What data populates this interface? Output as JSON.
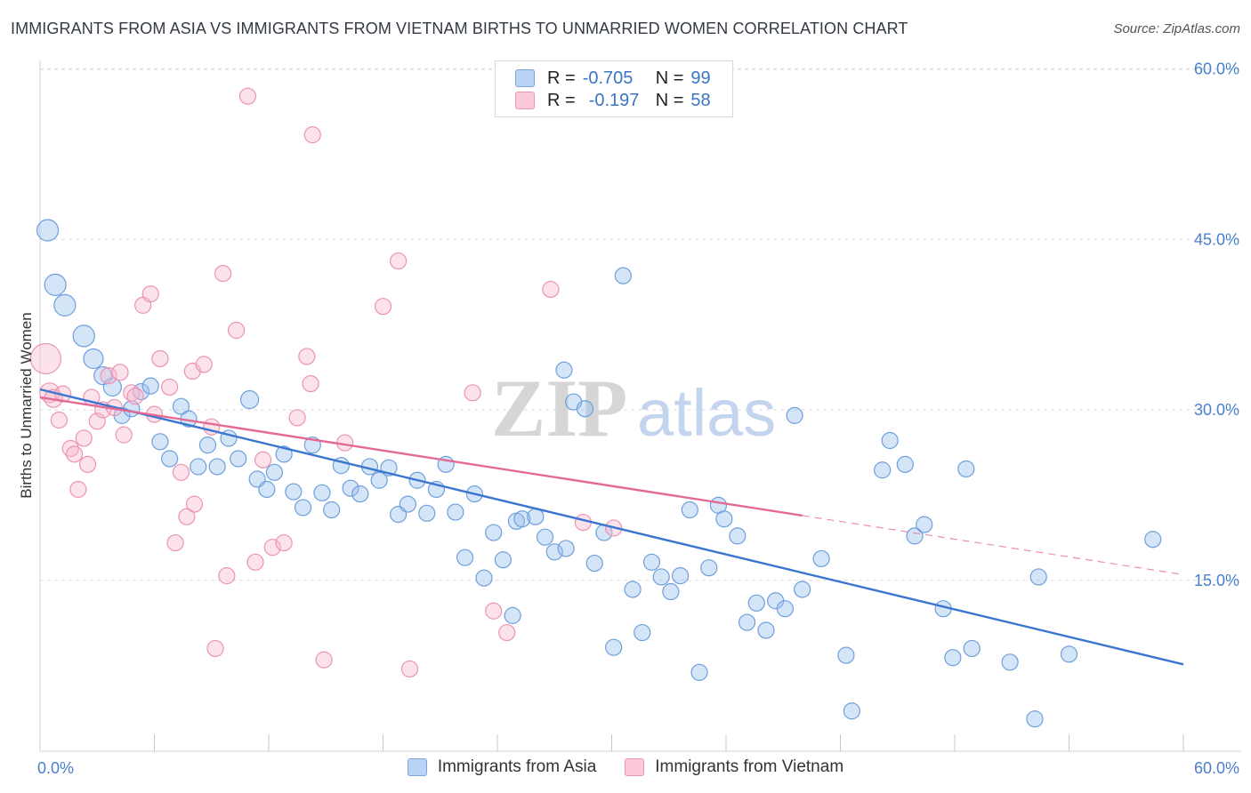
{
  "title": "IMMIGRANTS FROM ASIA VS IMMIGRANTS FROM VIETNAM BIRTHS TO UNMARRIED WOMEN CORRELATION CHART",
  "source": "Source: ZipAtlas.com",
  "watermark": {
    "zip": "ZIP",
    "atlas": "atlas"
  },
  "legend": {
    "r_label": "R =",
    "n_label": "N =",
    "rows": [
      {
        "r": "-0.705",
        "n": "99",
        "fill": "#b8d3f4",
        "stroke": "#7ba5de"
      },
      {
        "r": "-0.197",
        "n": "58",
        "fill": "#fbc9d8",
        "stroke": "#ee93b1"
      }
    ]
  },
  "bottom_legend": {
    "asia": "Immigrants from Asia",
    "vietnam": "Immigrants from Vietnam"
  },
  "colors": {
    "asia_fill": "rgba(150,190,238,0.40)",
    "asia_stroke": "#6e9fdc",
    "asia_line": "#3a75d0",
    "vietnam_fill": "rgba(248,182,204,0.40)",
    "vietnam_stroke": "#ec93b2",
    "vietnam_line": "#e46a95",
    "tick_label": "#4a7fcf",
    "grid": "#d8dce3",
    "watermark_zip": "#d6d6d6",
    "watermark_atlas": "#c3d4ee"
  },
  "chart_data": {
    "type": "scatter",
    "title": "IMMIGRANTS FROM ASIA VS IMMIGRANTS FROM VIETNAM BIRTHS TO UNMARRIED WOMEN CORRELATION CHART",
    "xlabel": "",
    "ylabel": "Births to Unmarried Women",
    "xlim": [
      0,
      60
    ],
    "ylim": [
      0,
      60
    ],
    "x_tick_labels": [
      "0.0%",
      "60.0%"
    ],
    "y_ticks": [
      15,
      30,
      45,
      60
    ],
    "y_tick_labels": [
      "15.0%",
      "30.0%",
      "45.0%",
      "60.0%"
    ],
    "grid": true,
    "legend_placement": "top-center",
    "series": [
      {
        "name": "Immigrants from Asia",
        "r": -0.705,
        "n": 99,
        "trend": {
          "x": [
            0,
            60
          ],
          "y": [
            31.8,
            7.6
          ]
        },
        "points": [
          [
            0.4,
            45.8,
            12
          ],
          [
            0.8,
            41.0,
            12
          ],
          [
            1.3,
            39.2,
            12
          ],
          [
            2.3,
            36.5,
            12
          ],
          [
            2.8,
            34.5,
            11
          ],
          [
            3.3,
            33.0,
            10
          ],
          [
            3.8,
            32.0,
            10
          ],
          [
            4.3,
            29.5,
            9
          ],
          [
            4.8,
            30.1,
            9
          ],
          [
            5.3,
            31.6,
            9
          ],
          [
            5.8,
            32.1,
            9
          ],
          [
            6.3,
            27.2,
            9
          ],
          [
            6.8,
            25.7,
            9
          ],
          [
            7.4,
            30.3,
            9
          ],
          [
            7.8,
            29.2,
            9
          ],
          [
            8.3,
            25.0,
            9
          ],
          [
            8.8,
            26.9,
            9
          ],
          [
            9.3,
            25.0,
            9
          ],
          [
            9.9,
            27.5,
            9
          ],
          [
            10.4,
            25.7,
            9
          ],
          [
            11.0,
            30.9,
            10
          ],
          [
            11.4,
            23.9,
            9
          ],
          [
            11.9,
            23.0,
            9
          ],
          [
            12.3,
            24.5,
            9
          ],
          [
            12.8,
            26.1,
            9
          ],
          [
            13.3,
            22.8,
            9
          ],
          [
            13.8,
            21.4,
            9
          ],
          [
            14.3,
            26.9,
            9
          ],
          [
            14.8,
            22.7,
            9
          ],
          [
            15.3,
            21.2,
            9
          ],
          [
            15.8,
            25.1,
            9
          ],
          [
            16.3,
            23.1,
            9
          ],
          [
            16.8,
            22.6,
            9
          ],
          [
            17.3,
            25.0,
            9
          ],
          [
            17.8,
            23.8,
            9
          ],
          [
            18.3,
            24.9,
            9
          ],
          [
            18.8,
            20.8,
            9
          ],
          [
            19.3,
            21.7,
            9
          ],
          [
            19.8,
            23.8,
            9
          ],
          [
            20.3,
            20.9,
            9
          ],
          [
            20.8,
            23.0,
            9
          ],
          [
            21.3,
            25.2,
            9
          ],
          [
            21.8,
            21.0,
            9
          ],
          [
            22.3,
            17.0,
            9
          ],
          [
            22.8,
            22.6,
            9
          ],
          [
            23.3,
            15.2,
            9
          ],
          [
            23.8,
            19.2,
            9
          ],
          [
            24.3,
            16.8,
            9
          ],
          [
            24.8,
            11.9,
            9
          ],
          [
            25.0,
            20.2,
            9
          ],
          [
            25.3,
            20.4,
            9
          ],
          [
            26.0,
            20.6,
            9
          ],
          [
            26.5,
            18.8,
            9
          ],
          [
            27.0,
            17.5,
            9
          ],
          [
            27.5,
            33.5,
            9
          ],
          [
            27.6,
            17.8,
            9
          ],
          [
            28.0,
            30.7,
            9
          ],
          [
            28.6,
            30.1,
            9
          ],
          [
            29.1,
            16.5,
            9
          ],
          [
            29.6,
            19.2,
            9
          ],
          [
            30.1,
            9.1,
            9
          ],
          [
            30.6,
            41.8,
            9
          ],
          [
            31.1,
            14.2,
            9
          ],
          [
            31.6,
            10.4,
            9
          ],
          [
            32.1,
            16.6,
            9
          ],
          [
            32.6,
            15.3,
            9
          ],
          [
            33.1,
            14.0,
            9
          ],
          [
            33.6,
            15.4,
            9
          ],
          [
            34.1,
            21.2,
            9
          ],
          [
            34.6,
            6.9,
            9
          ],
          [
            35.1,
            16.1,
            9
          ],
          [
            35.6,
            21.6,
            9
          ],
          [
            35.9,
            20.4,
            9
          ],
          [
            36.6,
            18.9,
            9
          ],
          [
            37.1,
            11.3,
            9
          ],
          [
            37.6,
            13.0,
            9
          ],
          [
            38.1,
            10.6,
            9
          ],
          [
            38.6,
            13.2,
            9
          ],
          [
            39.1,
            12.5,
            9
          ],
          [
            39.6,
            29.5,
            9
          ],
          [
            40.0,
            14.2,
            9
          ],
          [
            41.0,
            16.9,
            9
          ],
          [
            42.3,
            8.4,
            9
          ],
          [
            42.6,
            3.5,
            9
          ],
          [
            44.2,
            24.7,
            9
          ],
          [
            44.6,
            27.3,
            9
          ],
          [
            45.4,
            25.2,
            9
          ],
          [
            45.9,
            18.9,
            9
          ],
          [
            46.4,
            19.9,
            9
          ],
          [
            47.4,
            12.5,
            9
          ],
          [
            47.9,
            8.2,
            9
          ],
          [
            48.6,
            24.8,
            9
          ],
          [
            48.9,
            9.0,
            9
          ],
          [
            50.9,
            7.8,
            9
          ],
          [
            52.4,
            15.3,
            9
          ],
          [
            52.2,
            2.8,
            9
          ],
          [
            54.0,
            8.5,
            9
          ],
          [
            58.4,
            18.6,
            9
          ]
        ]
      },
      {
        "name": "Immigrants from Vietnam",
        "r": -0.197,
        "n": 58,
        "trend": {
          "x": [
            0,
            40
          ],
          "y": [
            31.1,
            20.7
          ]
        },
        "trend_ext": {
          "x": [
            40,
            60
          ],
          "y": [
            20.7,
            15.5
          ]
        },
        "points": [
          [
            0.3,
            34.5,
            17
          ],
          [
            0.5,
            31.5,
            11
          ],
          [
            0.7,
            31.0,
            10
          ],
          [
            1.0,
            29.1,
            9
          ],
          [
            1.2,
            31.4,
            9
          ],
          [
            1.6,
            26.6,
            9
          ],
          [
            1.8,
            26.1,
            9
          ],
          [
            2.0,
            23.0,
            9
          ],
          [
            2.3,
            27.5,
            9
          ],
          [
            2.5,
            25.2,
            9
          ],
          [
            2.7,
            31.1,
            9
          ],
          [
            3.0,
            29.0,
            9
          ],
          [
            3.3,
            30.0,
            9
          ],
          [
            3.6,
            33.0,
            9
          ],
          [
            3.9,
            30.2,
            9
          ],
          [
            4.2,
            33.3,
            9
          ],
          [
            4.4,
            27.8,
            9
          ],
          [
            4.8,
            31.5,
            9
          ],
          [
            5.0,
            31.2,
            9
          ],
          [
            5.4,
            39.2,
            9
          ],
          [
            5.8,
            40.2,
            9
          ],
          [
            6.0,
            29.6,
            9
          ],
          [
            6.3,
            34.5,
            9
          ],
          [
            6.8,
            32.0,
            9
          ],
          [
            7.1,
            18.3,
            9
          ],
          [
            7.4,
            24.5,
            9
          ],
          [
            7.7,
            20.6,
            9
          ],
          [
            8.0,
            33.4,
            9
          ],
          [
            8.1,
            21.7,
            9
          ],
          [
            8.6,
            34.0,
            9
          ],
          [
            9.0,
            28.5,
            9
          ],
          [
            9.2,
            9.0,
            9
          ],
          [
            9.6,
            42.0,
            9
          ],
          [
            9.8,
            15.4,
            9
          ],
          [
            10.3,
            37.0,
            9
          ],
          [
            10.9,
            57.6,
            9
          ],
          [
            11.3,
            16.6,
            9
          ],
          [
            11.7,
            25.6,
            9
          ],
          [
            12.2,
            17.9,
            9
          ],
          [
            12.8,
            18.3,
            9
          ],
          [
            13.5,
            29.3,
            9
          ],
          [
            14.0,
            34.7,
            9
          ],
          [
            14.2,
            32.3,
            9
          ],
          [
            14.3,
            54.2,
            9
          ],
          [
            14.9,
            8.0,
            9
          ],
          [
            16.0,
            27.1,
            9
          ],
          [
            18.0,
            39.1,
            9
          ],
          [
            18.8,
            43.1,
            9
          ],
          [
            19.4,
            7.2,
            9
          ],
          [
            22.7,
            31.5,
            9
          ],
          [
            23.8,
            12.3,
            9
          ],
          [
            24.5,
            10.4,
            9
          ],
          [
            26.8,
            40.6,
            9
          ],
          [
            28.5,
            20.1,
            9
          ],
          [
            30.1,
            19.6,
            9
          ]
        ]
      }
    ]
  }
}
